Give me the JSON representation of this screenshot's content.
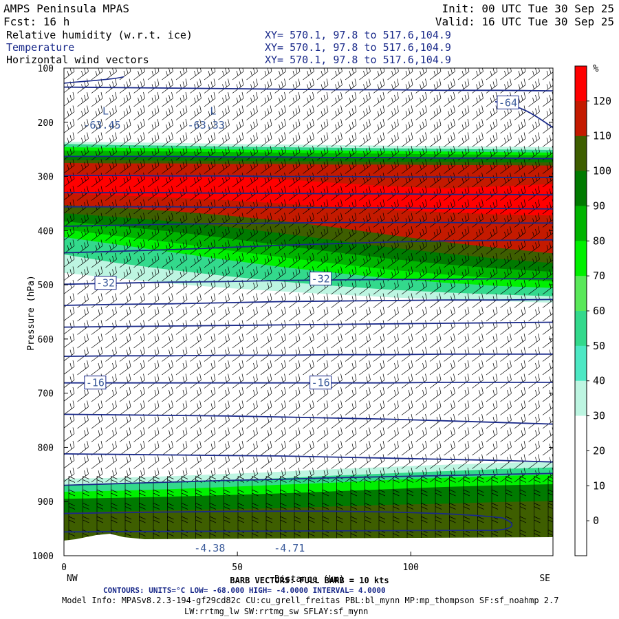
{
  "header": {
    "model": "AMPS Peninsula MPAS",
    "init": "Init: 00 UTC Tue 30 Sep 25",
    "fcst": "Fcst:   16 h",
    "valid": "Valid: 16 UTC Tue 30 Sep 25",
    "fields": [
      {
        "name": "Relative humidity (w.r.t. ice)",
        "xy": "XY= 570.1, 97.8 to 517.6,104.9",
        "color": "#000000"
      },
      {
        "name": "Temperature",
        "xy": "XY= 570.1, 97.8 to 517.6,104.9",
        "color": "#1a2a8a"
      },
      {
        "name": "Horizontal wind vectors",
        "xy": "XY= 570.1, 97.8 to 517.6,104.9",
        "color": "#000000"
      }
    ]
  },
  "colors": {
    "contour_line": "#1a2a8a",
    "contour_label": "#3a5a9a"
  },
  "chart_data": {
    "type": "heatmap",
    "xlabel": "Distance (km)",
    "ylabel": "Pressure (hPa)",
    "xlim": [
      0,
      141
    ],
    "ylim": [
      1000,
      100
    ],
    "x_ticks": [
      0,
      50,
      100
    ],
    "y_ticks": [
      100,
      200,
      300,
      400,
      500,
      600,
      700,
      800,
      900,
      1000
    ],
    "x_end_labels": {
      "left": "NW",
      "right": "SE"
    },
    "colorbar": {
      "unit": "%",
      "bins": [
        {
          "from": 120,
          "to": 130,
          "color": "#ff0000"
        },
        {
          "from": 110,
          "to": 120,
          "color": "#c41a00"
        },
        {
          "from": 100,
          "to": 110,
          "color": "#3e5e00"
        },
        {
          "from": 90,
          "to": 100,
          "color": "#007a00"
        },
        {
          "from": 80,
          "to": 90,
          "color": "#00b400"
        },
        {
          "from": 70,
          "to": 80,
          "color": "#00f000"
        },
        {
          "from": 60,
          "to": 70,
          "color": "#5ae85a"
        },
        {
          "from": 50,
          "to": 60,
          "color": "#33d98c"
        },
        {
          "from": 40,
          "to": 50,
          "color": "#4de8c4"
        },
        {
          "from": 30,
          "to": 40,
          "color": "#bdf5e1"
        },
        {
          "from": 20,
          "to": 30,
          "color": "#ffffff"
        },
        {
          "from": 10,
          "to": 20,
          "color": "#ffffff"
        },
        {
          "from": 0,
          "to": 10,
          "color": "#ffffff"
        },
        {
          "from": -10,
          "to": 0,
          "color": "#ffffff"
        }
      ],
      "tick_labels": [
        "120",
        "110",
        "100",
        "90",
        "80",
        "70",
        "60",
        "50",
        "40",
        "30",
        "20",
        "10",
        "0"
      ]
    },
    "rh_bands": [
      {
        "rh": 35,
        "top": [
          236,
          237,
          238,
          240,
          241,
          242,
          243,
          244,
          245,
          246
        ],
        "bottom": [
          478,
          488,
          498,
          506,
          512,
          518,
          523,
          527,
          530,
          533
        ]
      },
      {
        "rh": 55,
        "top": [
          240,
          242,
          243,
          245,
          246,
          247,
          248,
          249,
          250,
          251
        ],
        "bottom": [
          444,
          460,
          473,
          484,
          494,
          502,
          509,
          514,
          518,
          521
        ]
      },
      {
        "rh": 75,
        "top": [
          246,
          247,
          248,
          250,
          251,
          252,
          253,
          254,
          255,
          256
        ],
        "bottom": [
          412,
          426,
          440,
          454,
          467,
          478,
          488,
          496,
          502,
          506
        ]
      },
      {
        "rh": 85,
        "top": [
          252,
          253,
          254,
          255,
          256,
          257,
          258,
          259,
          260,
          261
        ],
        "bottom": [
          398,
          410,
          422,
          436,
          449,
          461,
          472,
          481,
          488,
          494
        ]
      },
      {
        "rh": 95,
        "top": [
          262,
          262,
          263,
          263,
          264,
          264,
          265,
          265,
          266,
          266
        ],
        "bottom": [
          383,
          392,
          402,
          414,
          427,
          440,
          452,
          462,
          470,
          476
        ]
      },
      {
        "rh": 105,
        "top": [
          270,
          270,
          271,
          271,
          272,
          272,
          273,
          273,
          274,
          274
        ],
        "bottom": [
          368,
          375,
          383,
          393,
          405,
          418,
          431,
          442,
          452,
          460
        ]
      },
      {
        "rh": 115,
        "top": [
          275,
          276,
          276,
          277,
          277,
          278,
          278,
          279,
          279,
          280
        ],
        "bottom": [
          353,
          358,
          364,
          372,
          382,
          394,
          408,
          421,
          432,
          442
        ]
      },
      {
        "rh": 125,
        "top": [
          296,
          296,
          297,
          300,
          305,
          312,
          318,
          322,
          318,
          314
        ],
        "bottom": [
          332,
          335,
          339,
          344,
          350,
          356,
          362,
          366,
          370,
          372
        ]
      }
    ],
    "rh_low_bands": [
      {
        "rh": 35,
        "top": [
          858,
          856,
          853,
          849,
          845,
          840,
          836,
          832,
          829,
          826
        ],
        "bottom": [
          975,
          975,
          975,
          975,
          975,
          975,
          975,
          975,
          975,
          975
        ]
      },
      {
        "rh": 55,
        "top": [
          870,
          868,
          865,
          861,
          857,
          852,
          848,
          844,
          840,
          837
        ],
        "bottom": [
          975,
          975,
          975,
          975,
          975,
          975,
          975,
          975,
          975,
          975
        ]
      },
      {
        "rh": 75,
        "top": [
          882,
          880,
          877,
          873,
          869,
          865,
          860,
          856,
          853,
          850
        ],
        "bottom": [
          975,
          975,
          975,
          975,
          975,
          975,
          975,
          975,
          975,
          975
        ]
      },
      {
        "rh": 95,
        "top": [
          895,
          893,
          891,
          888,
          885,
          881,
          877,
          873,
          870,
          868
        ],
        "bottom": [
          975,
          975,
          975,
          975,
          975,
          975,
          975,
          975,
          975,
          975
        ]
      },
      {
        "rh": 105,
        "top": [
          920,
          918,
          916,
          914,
          912,
          909,
          906,
          904,
          901,
          899
        ],
        "bottom": [
          975,
          975,
          975,
          975,
          975,
          975,
          975,
          975,
          975,
          975
        ]
      }
    ],
    "temperature_contours": {
      "unit": "°C",
      "lines": [
        {
          "value": -60,
          "p": [
            135,
            136,
            137,
            138,
            139,
            140,
            140,
            141,
            141,
            142
          ]
        },
        {
          "value": -56,
          "p": [
            263,
            263,
            263,
            264,
            264,
            265,
            265,
            266,
            266,
            267
          ]
        },
        {
          "value": -52,
          "p": [
            298,
            298,
            299,
            299,
            300,
            300,
            301,
            301,
            302,
            302
          ]
        },
        {
          "value": -48,
          "p": [
            330,
            330,
            330,
            331,
            331,
            332,
            332,
            333,
            333,
            334
          ]
        },
        {
          "value": -44,
          "p": [
            356,
            356,
            356,
            357,
            357,
            358,
            358,
            359,
            359,
            360
          ]
        },
        {
          "value": -40,
          "p": [
            392,
            390,
            388,
            387,
            386,
            385,
            385,
            385,
            386,
            386
          ]
        },
        {
          "value": -36,
          "p": [
            441,
            438,
            435,
            431,
            427,
            424,
            421,
            419,
            418,
            417
          ]
        },
        {
          "value": -32,
          "p": [
            499,
            497,
            495,
            494,
            492,
            491,
            490,
            490,
            489,
            489
          ]
        },
        {
          "value": -28,
          "p": [
            538,
            536,
            535,
            533,
            531,
            530,
            529,
            528,
            528,
            527
          ]
        },
        {
          "value": -24,
          "p": [
            578,
            577,
            576,
            575,
            574,
            573,
            572,
            571,
            570,
            569
          ]
        },
        {
          "value": -20,
          "p": [
            632,
            631,
            631,
            630,
            630,
            629,
            629,
            628,
            628,
            628
          ]
        },
        {
          "value": -16,
          "p": [
            681,
            681,
            681,
            681,
            681,
            681,
            681,
            680,
            680,
            680
          ]
        },
        {
          "value": -12,
          "p": [
            739,
            740,
            741,
            742,
            744,
            746,
            748,
            751,
            754,
            757
          ]
        },
        {
          "value": -8,
          "p": [
            812,
            813,
            814,
            815,
            816,
            818,
            820,
            822,
            824,
            827
          ]
        },
        {
          "value": -4,
          "p": [
            870,
            867,
            864,
            861,
            859,
            856,
            854,
            852,
            850,
            848
          ]
        }
      ],
      "labels": [
        {
          "text": "-64",
          "x": 128,
          "p": 164
        },
        {
          "text": "-32",
          "x": 12,
          "p": 497
        },
        {
          "text": "-32",
          "x": 74,
          "p": 489
        },
        {
          "text": "-16",
          "x": 9,
          "p": 681
        },
        {
          "text": "-16",
          "x": 74,
          "p": 681
        },
        {
          "text": "-4.38",
          "x": 42,
          "p": 986
        },
        {
          "text": "-4.71",
          "x": 65,
          "p": 986
        }
      ],
      "minima": [
        {
          "text": "L",
          "x": 12,
          "p": 186
        },
        {
          "text": "-63.45",
          "x": 11,
          "p": 212
        },
        {
          "text": "L",
          "x": 43,
          "p": 186
        },
        {
          "text": "-63.33",
          "x": 41,
          "p": 212
        }
      ]
    },
    "wind_barbs": {
      "type": "barb",
      "full_barb_kts": 10
    }
  },
  "footer": {
    "barb_line": "BARB VECTORS: FULL BARB = 10 kts",
    "contours_line": "CONTOURS:  UNITS=°C  LOW= -68.000       HIGH= -4.0000       INTERVAL=   4.0000",
    "model_info": "Model Info: MPASv8.2.3-194-gf29cd82c CU:cu_grell_freitas PBL:bl_mynn MP:mp_thompson SF:sf_noahmp 2.7",
    "model_info2": "LW:rrtmg_lw SW:rrtmg_sw SFLAY:sf_mynn"
  }
}
